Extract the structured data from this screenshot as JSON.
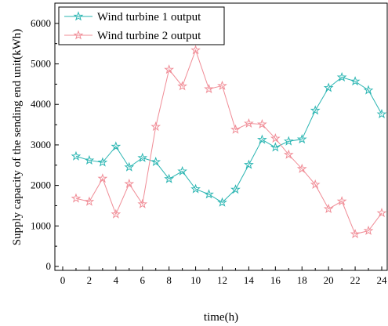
{
  "chart_data": {
    "type": "line",
    "title": "",
    "xlabel": "time(h)",
    "ylabel": "Supply capacity of the sending end unit(kWh)",
    "xlim": [
      0,
      24
    ],
    "ylim": [
      0,
      6500
    ],
    "xticks": [
      0,
      2,
      4,
      6,
      8,
      10,
      12,
      14,
      16,
      18,
      20,
      22,
      24
    ],
    "yticks": [
      0,
      1000,
      2000,
      3000,
      4000,
      5000,
      6000
    ],
    "grid": false,
    "legend_position": "top-left",
    "x": [
      1,
      2,
      3,
      4,
      5,
      6,
      7,
      8,
      9,
      10,
      11,
      12,
      13,
      14,
      15,
      16,
      17,
      18,
      19,
      20,
      21,
      22,
      23,
      24
    ],
    "series": [
      {
        "name": "Wind turbine 1 output",
        "color": "#2ab5b2",
        "values": [
          2720,
          2620,
          2570,
          2960,
          2450,
          2680,
          2580,
          2160,
          2350,
          1910,
          1780,
          1580,
          1900,
          2510,
          3130,
          2940,
          3090,
          3140,
          3850,
          4410,
          4670,
          4570,
          4350,
          3760
        ]
      },
      {
        "name": "Wind turbine 2 output",
        "color": "#f08c96",
        "values": [
          1680,
          1600,
          2170,
          1290,
          2040,
          1540,
          3450,
          4860,
          4450,
          5340,
          4380,
          4460,
          3380,
          3530,
          3510,
          3160,
          2760,
          2410,
          2020,
          1420,
          1610,
          800,
          880,
          1320
        ]
      }
    ]
  }
}
